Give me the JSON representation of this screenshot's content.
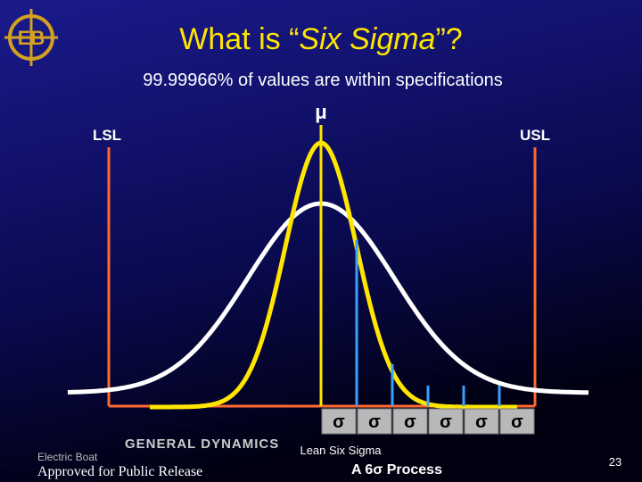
{
  "header": {
    "title_start": "What is “",
    "title_italic": "Six Sigma",
    "title_end": "”?",
    "subtitle": "99.99966% of values are within specifications"
  },
  "diagram": {
    "lsl": "LSL",
    "usl": "USL",
    "mean": "μ",
    "sigmas": [
      "σ",
      "σ",
      "σ",
      "σ",
      "σ",
      "σ"
    ]
  },
  "footer": {
    "company": "GENERAL DYNAMICS",
    "division": "Electric Boat",
    "release": "Approved for Public Release",
    "program": "Lean Six Sigma",
    "caption": "A 6σ Process",
    "page": "23"
  },
  "logo": {
    "letters": "EB"
  }
}
